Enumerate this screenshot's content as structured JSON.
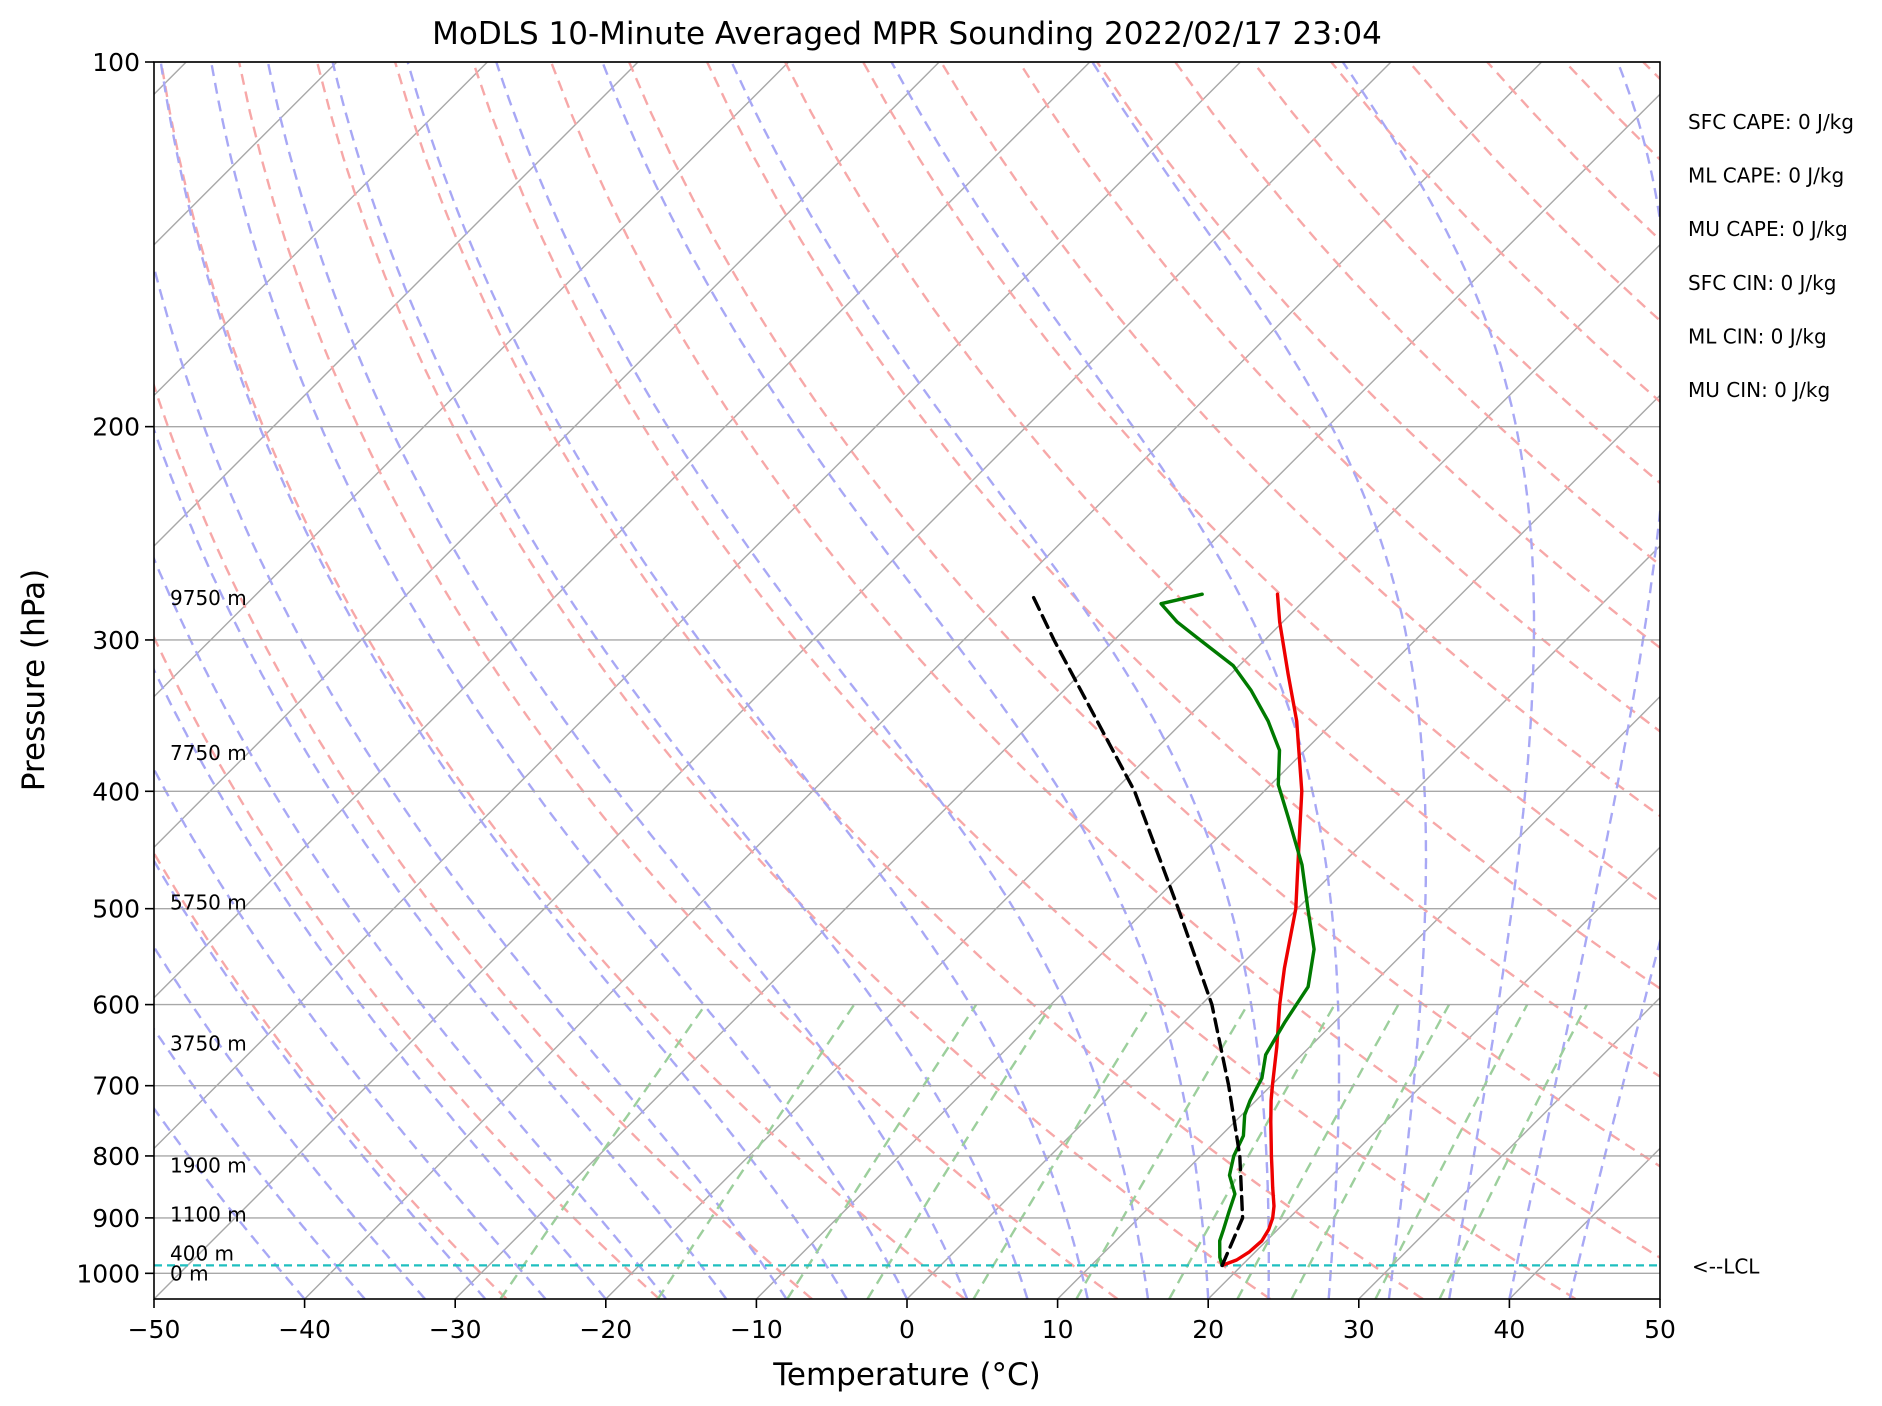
{
  "chart_data": {
    "type": "line",
    "title": "MoDLS 10-Minute Averaged MPR Sounding 2022/02/17 23:04",
    "xlabel": "Temperature (°C)",
    "ylabel": "Pressure (hPa)",
    "xlim": [
      -50,
      50
    ],
    "ylim": [
      1050,
      100
    ],
    "y_scale": "log",
    "skew": "skew-T log-p",
    "x_ticks": [
      "−50",
      "−40",
      "−30",
      "−20",
      "−10",
      "0",
      "10",
      "20",
      "30",
      "40",
      "50"
    ],
    "x_tick_values": [
      -50,
      -40,
      -30,
      -20,
      -10,
      0,
      10,
      20,
      30,
      40,
      50
    ],
    "y_ticks": [
      "100",
      "200",
      "300",
      "400",
      "500",
      "600",
      "700",
      "800",
      "900",
      "1000"
    ],
    "y_tick_values": [
      100,
      200,
      300,
      400,
      500,
      600,
      700,
      800,
      900,
      1000
    ],
    "grid": true,
    "colors": {
      "temperature": "#ee0000",
      "dewpoint": "#007a00",
      "parcel": "#000000",
      "isotherm": "#a8a8a8",
      "dry_adiabat": "#f7a8a8",
      "moist_adiabat": "#a8a8f5",
      "mixing_ratio": "#9ccf9c",
      "lcl": "#1fbfbf"
    },
    "series": [
      {
        "key": "temperature",
        "p": [
          985,
          975,
          960,
          940,
          920,
          900,
          880,
          850,
          820,
          800,
          780,
          750,
          720,
          700,
          650,
          600,
          560,
          500,
          450,
          400,
          350,
          320,
          290,
          275
        ],
        "t": [
          18.7,
          19.3,
          19.6,
          19.7,
          19.4,
          18.9,
          18.2,
          16.9,
          15.6,
          14.7,
          13.8,
          12.4,
          11.0,
          10.1,
          7.8,
          5.2,
          3.1,
          -0.1,
          -3.6,
          -7.5,
          -12.5,
          -16.2,
          -20.2,
          -22.2
        ]
      },
      {
        "key": "dewpoint",
        "p": [
          985,
          970,
          940,
          920,
          890,
          860,
          830,
          800,
          770,
          740,
          720,
          690,
          660,
          620,
          580,
          540,
          500,
          460,
          420,
          395,
          370,
          350,
          330,
          315,
          300,
          290,
          280,
          275
        ],
        "t": [
          18.7,
          18.0,
          16.9,
          16.4,
          15.6,
          14.8,
          13.2,
          12.2,
          11.5,
          10.2,
          9.6,
          8.9,
          7.6,
          6.7,
          5.9,
          3.8,
          0.7,
          -2.6,
          -6.7,
          -9.5,
          -11.7,
          -14.4,
          -17.6,
          -20.4,
          -24.3,
          -27.0,
          -29.3,
          -27.2
        ]
      },
      {
        "key": "parcel",
        "p": [
          985,
          900,
          800,
          700,
          600,
          500,
          400,
          300,
          275
        ],
        "t": [
          18.7,
          16.9,
          12.6,
          7.2,
          0.7,
          -7.9,
          -18.6,
          -34.0,
          -38.5
        ]
      }
    ],
    "height_labels": [
      {
        "label": "0 m",
        "p": 1000
      },
      {
        "label": "400 m",
        "p": 963
      },
      {
        "label": "1100 m",
        "p": 894
      },
      {
        "label": "1900 m",
        "p": 815
      },
      {
        "label": "3750 m",
        "p": 646
      },
      {
        "label": "5750 m",
        "p": 494
      },
      {
        "label": "7750 m",
        "p": 372
      },
      {
        "label": "9750 m",
        "p": 277
      }
    ],
    "lcl": {
      "p": 985,
      "label": "<--LCL"
    },
    "indices": [
      "SFC CAPE: 0 J/kg",
      "ML CAPE: 0 J/kg",
      "MU CAPE: 0 J/kg",
      "SFC CIN: 0 J/kg",
      "ML CIN: 0 J/kg",
      "MU CIN: 0 J/kg"
    ]
  }
}
